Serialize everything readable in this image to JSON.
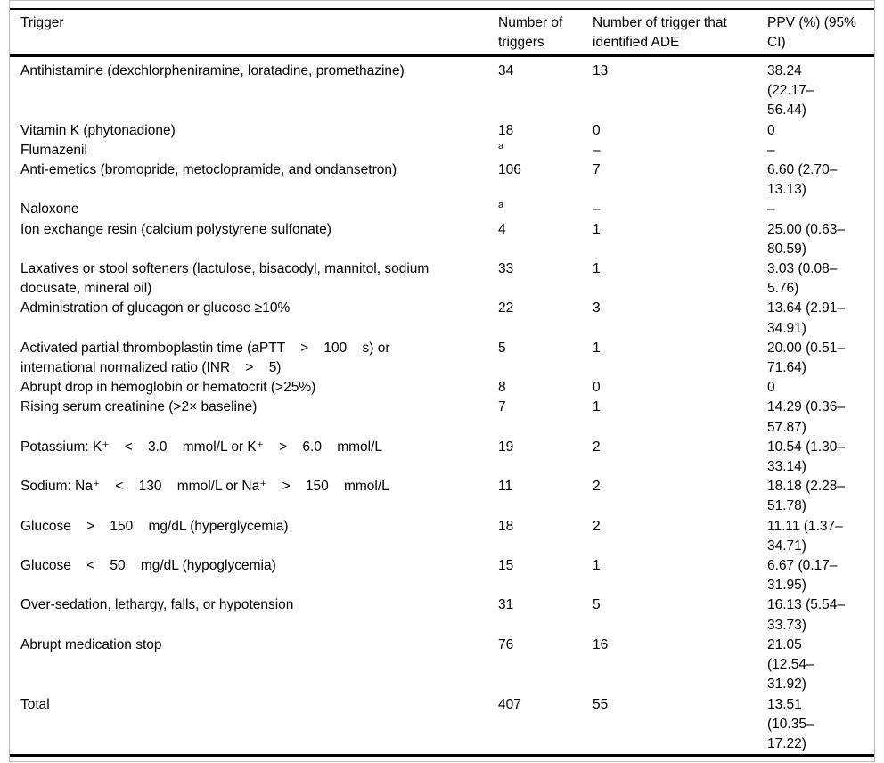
{
  "colors": {
    "text": "#000000",
    "rules": "#000000",
    "frame_border": "#bdbdbd",
    "background": "#ffffff"
  },
  "table": {
    "columns": [
      "Trigger",
      "Number of\ntriggers",
      "Number of trigger that\nidentified ADE",
      "PPV (%) (95%\nCI)"
    ],
    "footnote_marker": "a",
    "rows": [
      {
        "trigger": "Antihistamine (dexchlorpheniramine, loratadine, promethazine)",
        "n": "34",
        "n_sup": false,
        "ade": "13",
        "ppv": "38.24\n(22.17–\n56.44)"
      },
      {
        "trigger": "Vitamin K (phytonadione)",
        "n": "18",
        "n_sup": false,
        "ade": "0",
        "ppv": "0"
      },
      {
        "trigger": "Flumazenil",
        "n": "a",
        "n_sup": true,
        "ade": "–",
        "ppv": "–"
      },
      {
        "trigger": "Anti-emetics (bromopride, metoclopramide, and ondansetron)",
        "n": "106",
        "n_sup": false,
        "ade": "7",
        "ppv": "6.60 (2.70–\n13.13)"
      },
      {
        "trigger": "Naloxone",
        "n": "a",
        "n_sup": true,
        "ade": "–",
        "ppv": "–"
      },
      {
        "trigger": "Ion exchange resin (calcium polystyrene sulfonate)",
        "n": "4",
        "n_sup": false,
        "ade": "1",
        "ppv": "25.00 (0.63–\n80.59)"
      },
      {
        "trigger": "Laxatives or stool softeners (lactulose, bisacodyl, mannitol, sodium\ndocusate, mineral oil)",
        "n": "33",
        "n_sup": false,
        "ade": "1",
        "ppv": "3.03 (0.08–\n5.76)"
      },
      {
        "trigger": "Administration of glucagon or glucose ≥10%",
        "n": "22",
        "n_sup": false,
        "ade": "3",
        "ppv": "13.64 (2.91–\n34.91)"
      },
      {
        "trigger": "Activated partial thromboplastin time (aPTT    >    100    s) or\ninternational normalized ratio (INR    >    5)",
        "n": "5",
        "n_sup": false,
        "ade": "1",
        "ppv": "20.00 (0.51–\n71.64)"
      },
      {
        "trigger": "Abrupt drop in hemoglobin or hematocrit (>25%)",
        "n": "8",
        "n_sup": false,
        "ade": "0",
        "ppv": "0"
      },
      {
        "trigger": "Rising serum creatinine (>2× baseline)",
        "n": "7",
        "n_sup": false,
        "ade": "1",
        "ppv": "14.29 (0.36–\n57.87)"
      },
      {
        "trigger": "Potassium: K⁺    <    3.0    mmol/L or K⁺    >    6.0    mmol/L",
        "n": "19",
        "n_sup": false,
        "ade": "2",
        "ppv": "10.54 (1.30–\n33.14)"
      },
      {
        "trigger": "Sodium: Na⁺    <    130    mmol/L or Na⁺    >    150    mmol/L",
        "n": "11",
        "n_sup": false,
        "ade": "2",
        "ppv": "18.18 (2.28–\n51.78)"
      },
      {
        "trigger": "Glucose    >    150    mg/dL (hyperglycemia)",
        "n": "18",
        "n_sup": false,
        "ade": "2",
        "ppv": "11.11 (1.37–\n34.71)"
      },
      {
        "trigger": "Glucose    <    50    mg/dL (hypoglycemia)",
        "n": "15",
        "n_sup": false,
        "ade": "1",
        "ppv": "6.67 (0.17–\n31.95)"
      },
      {
        "trigger": "Over-sedation, lethargy, falls, or hypotension",
        "n": "31",
        "n_sup": false,
        "ade": "5",
        "ppv": "16.13 (5.54–\n33.73)"
      },
      {
        "trigger": "Abrupt medication stop",
        "n": "76",
        "n_sup": false,
        "ade": "16",
        "ppv": "21.05\n(12.54–\n31.92)"
      },
      {
        "trigger": "Total",
        "n": "407",
        "n_sup": false,
        "ade": "55",
        "ppv": "13.51\n(10.35–\n17.22)"
      }
    ]
  }
}
